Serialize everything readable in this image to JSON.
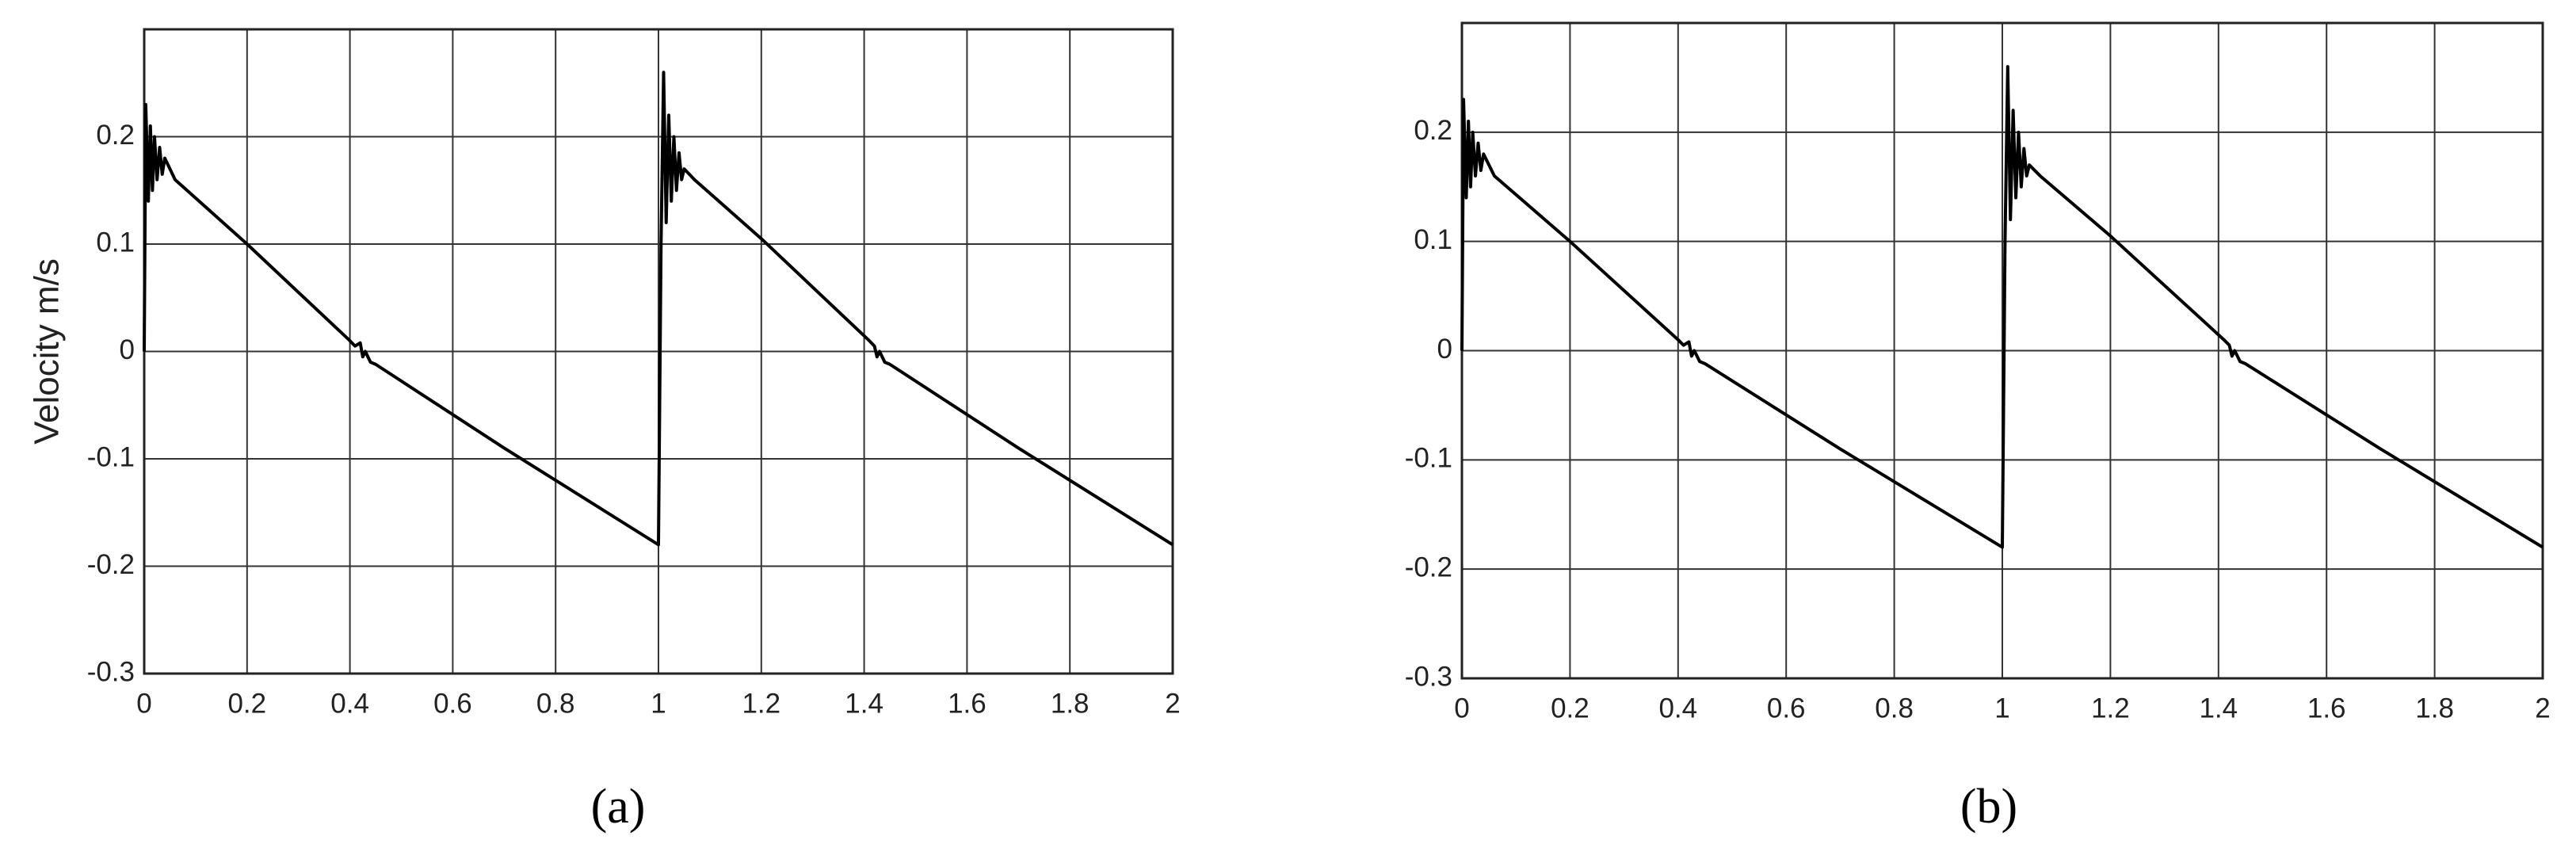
{
  "chart_data": [
    {
      "type": "line",
      "y_label": "Velocity m/s",
      "caption": "(a)",
      "x": [
        0,
        0.003,
        0.008,
        0.012,
        0.016,
        0.02,
        0.025,
        0.03,
        0.035,
        0.04,
        0.05,
        0.06,
        0.2,
        0.4,
        0.41,
        0.42,
        0.425,
        0.43,
        0.44,
        0.45,
        0.7,
        1.0,
        1.005,
        1.01,
        1.015,
        1.02,
        1.025,
        1.03,
        1.035,
        1.04,
        1.045,
        1.05,
        1.06,
        1.07,
        1.2,
        1.41,
        1.42,
        1.425,
        1.43,
        1.44,
        1.45,
        1.7,
        2.0
      ],
      "series": [
        {
          "color": "#000000",
          "values": [
            0,
            0.23,
            0.14,
            0.21,
            0.15,
            0.2,
            0.16,
            0.19,
            0.165,
            0.18,
            0.17,
            0.16,
            0.1,
            0.01,
            0.005,
            0.008,
            -0.005,
            0,
            -0.01,
            -0.012,
            -0.09,
            -0.18,
            0.1,
            0.26,
            0.12,
            0.22,
            0.14,
            0.2,
            0.15,
            0.185,
            0.16,
            0.17,
            0.165,
            0.16,
            0.105,
            0.01,
            0.005,
            -0.005,
            0,
            -0.01,
            -0.012,
            -0.09,
            -0.18
          ]
        }
      ],
      "xlim": [
        0,
        2
      ],
      "xticks": [
        0,
        0.2,
        0.4,
        0.6,
        0.8,
        1,
        1.2,
        1.4,
        1.6,
        1.8,
        2
      ],
      "ylim": [
        -0.3,
        0.3
      ],
      "yticks": [
        -0.3,
        -0.2,
        -0.1,
        0,
        0.1,
        0.2
      ],
      "grid": true
    },
    {
      "type": "line",
      "caption": "(b)",
      "x": [
        0,
        0.003,
        0.008,
        0.012,
        0.016,
        0.02,
        0.025,
        0.03,
        0.035,
        0.04,
        0.05,
        0.06,
        0.2,
        0.4,
        0.41,
        0.42,
        0.425,
        0.43,
        0.44,
        0.45,
        0.7,
        1.0,
        1.005,
        1.01,
        1.015,
        1.02,
        1.025,
        1.03,
        1.035,
        1.04,
        1.045,
        1.05,
        1.06,
        1.07,
        1.2,
        1.41,
        1.42,
        1.425,
        1.43,
        1.44,
        1.45,
        1.7,
        2.0
      ],
      "series": [
        {
          "color": "#000000",
          "values": [
            0,
            0.23,
            0.14,
            0.21,
            0.15,
            0.2,
            0.16,
            0.19,
            0.165,
            0.18,
            0.17,
            0.16,
            0.1,
            0.01,
            0.005,
            0.008,
            -0.005,
            0,
            -0.01,
            -0.012,
            -0.09,
            -0.18,
            0.1,
            0.26,
            0.12,
            0.22,
            0.14,
            0.2,
            0.15,
            0.185,
            0.16,
            0.17,
            0.165,
            0.16,
            0.105,
            0.01,
            0.005,
            -0.005,
            0,
            -0.01,
            -0.012,
            -0.09,
            -0.18
          ]
        }
      ],
      "xlim": [
        0,
        2
      ],
      "xticks": [
        0,
        0.2,
        0.4,
        0.6,
        0.8,
        1,
        1.2,
        1.4,
        1.6,
        1.8,
        2
      ],
      "ylim": [
        -0.3,
        0.3
      ],
      "yticks": [
        -0.3,
        -0.2,
        -0.1,
        0,
        0.1,
        0.2
      ],
      "grid": true
    }
  ]
}
